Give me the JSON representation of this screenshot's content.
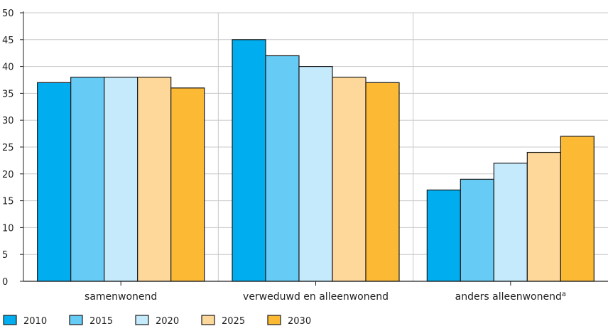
{
  "chart_data": {
    "type": "bar",
    "categories": [
      "samenwonend",
      "verweduwd en alleenwonend",
      "anders alleenwonend"
    ],
    "category_superscripts": [
      "",
      "",
      "a"
    ],
    "series": [
      {
        "name": "2010",
        "color": "#00aeef",
        "values": [
          37,
          45,
          17
        ]
      },
      {
        "name": "2015",
        "color": "#66ccf5",
        "values": [
          38,
          42,
          19
        ]
      },
      {
        "name": "2020",
        "color": "#c5eafb",
        "values": [
          38,
          40,
          22
        ]
      },
      {
        "name": "2025",
        "color": "#fdd89a",
        "values": [
          38,
          38,
          24
        ]
      },
      {
        "name": "2030",
        "color": "#fbb934",
        "values": [
          36,
          37,
          27
        ]
      }
    ],
    "ylim": [
      0,
      50
    ],
    "yticks": [
      "0",
      "5",
      "10",
      "15",
      "20",
      "25",
      "30",
      "35",
      "40",
      "45",
      "50"
    ],
    "grid": true,
    "legend_position": "bottom-left",
    "title": "",
    "xlabel": "",
    "ylabel": ""
  }
}
